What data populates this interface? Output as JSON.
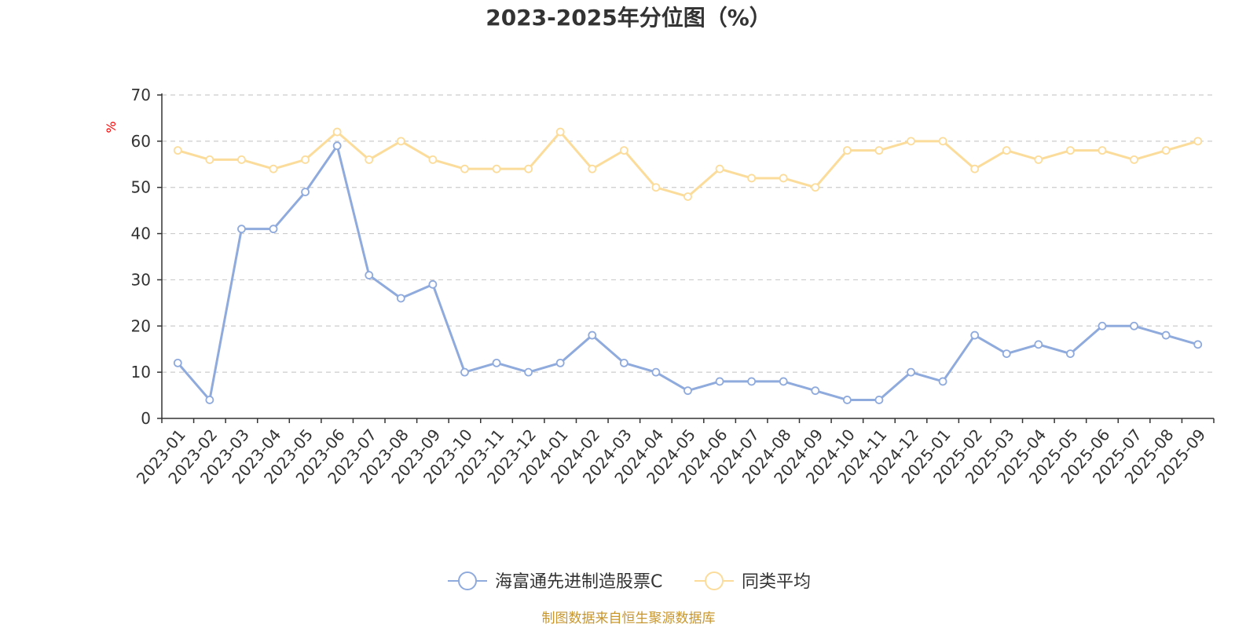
{
  "chart_data": {
    "type": "line",
    "title": "2023-2025年分位图（%）",
    "ylabel": "%",
    "ylim": [
      0,
      70
    ],
    "yticks": [
      0,
      10,
      20,
      30,
      40,
      50,
      60,
      70
    ],
    "grid": true,
    "legend_position": "bottom",
    "categories": [
      "2023-01",
      "2023-02",
      "2023-03",
      "2023-04",
      "2023-05",
      "2023-06",
      "2023-07",
      "2023-08",
      "2023-09",
      "2023-10",
      "2023-11",
      "2023-12",
      "2024-01",
      "2024-02",
      "2024-03",
      "2024-04",
      "2024-05",
      "2024-06",
      "2024-07",
      "2024-08",
      "2024-09",
      "2024-10",
      "2024-11",
      "2024-12",
      "2025-01",
      "2025-02",
      "2025-03",
      "2025-04",
      "2025-05",
      "2025-06",
      "2025-07",
      "2025-08",
      "2025-09"
    ],
    "series": [
      {
        "name": "海富通先进制造股票C",
        "color": "#8faadc",
        "values": [
          12,
          4,
          41,
          41,
          49,
          59,
          31,
          26,
          29,
          10,
          12,
          10,
          12,
          18,
          12,
          10,
          6,
          8,
          8,
          8,
          6,
          4,
          4,
          10,
          8,
          18,
          14,
          16,
          14,
          20,
          20,
          18,
          16
        ]
      },
      {
        "name": "同类平均",
        "color": "#fcdc9a",
        "values": [
          58,
          56,
          56,
          54,
          56,
          62,
          56,
          60,
          56,
          54,
          54,
          54,
          62,
          54,
          58,
          50,
          48,
          54,
          52,
          52,
          50,
          58,
          58,
          60,
          60,
          54,
          58,
          56,
          58,
          58,
          56,
          58,
          60
        ]
      }
    ]
  },
  "source": "制图数据来自恒生聚源数据库"
}
